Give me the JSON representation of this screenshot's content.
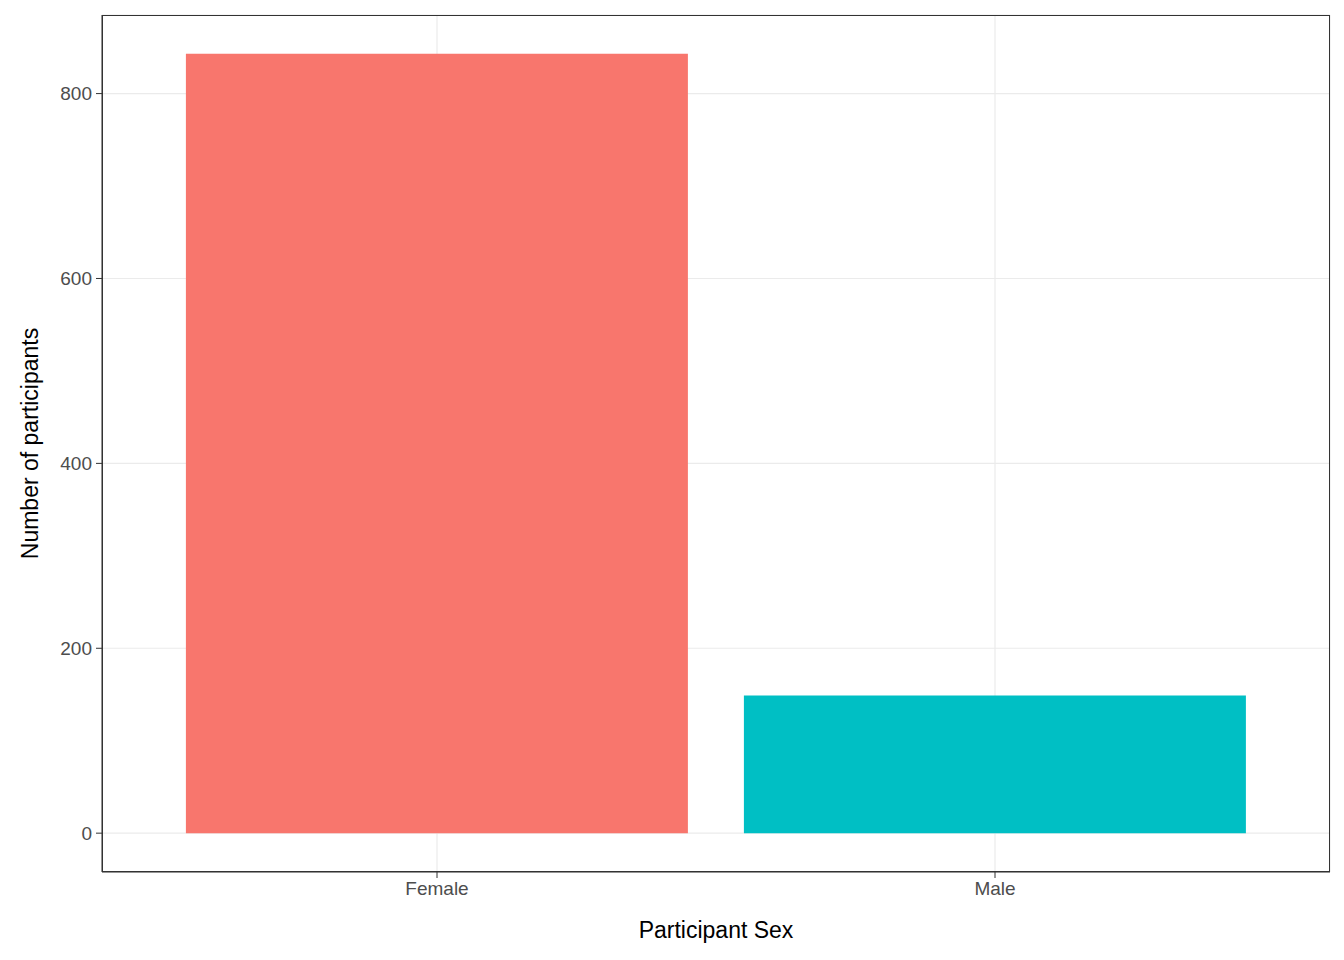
{
  "chart_data": {
    "type": "bar",
    "categories": [
      "Female",
      "Male"
    ],
    "values": [
      843,
      149
    ],
    "colors": [
      "#F8766D",
      "#00BFC4"
    ],
    "x_label": "Participant Sex",
    "y_label": "Number of participants",
    "ylim": [
      -42,
      885
    ],
    "yticks": [
      0,
      200,
      400,
      600,
      800
    ],
    "grid": true
  }
}
